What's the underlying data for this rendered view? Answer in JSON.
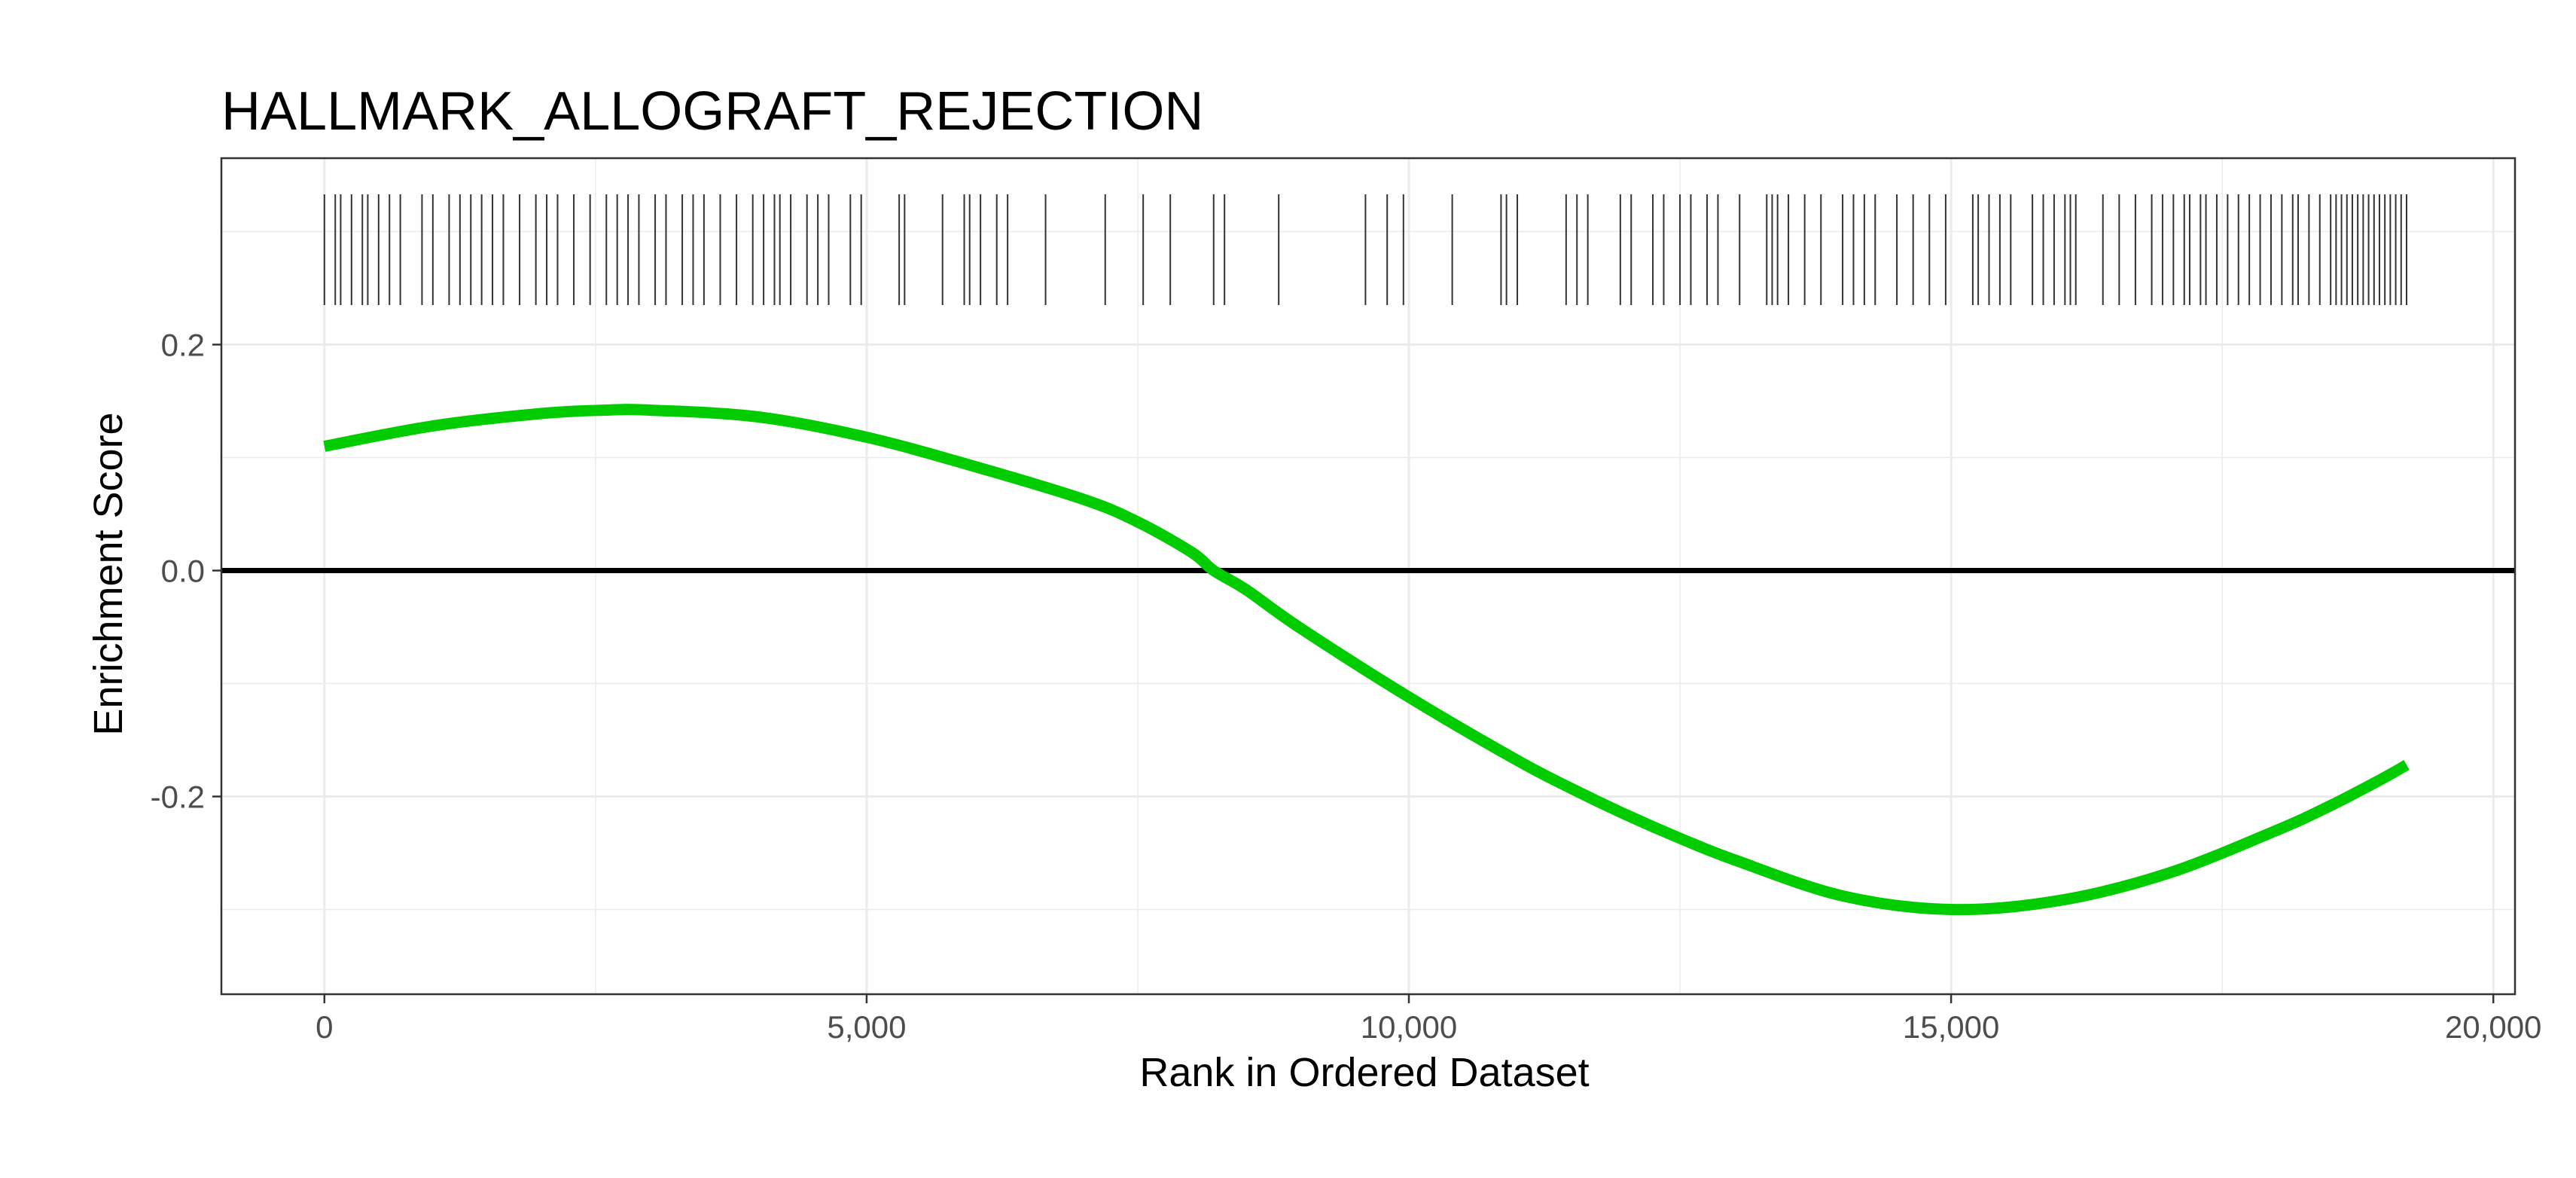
{
  "colors": {
    "curve": "#00cc00",
    "zero_line": "#000000",
    "gene_ticks": "#333333",
    "grid": "#ebebeb",
    "panel_border": "#333333",
    "background": "#ffffff"
  },
  "chart_data": {
    "type": "line",
    "title": "HALLMARK_ALLOGRAFT_REJECTION",
    "xlabel": "Rank in Ordered Dataset",
    "ylabel": "Enrichment Score",
    "xlim": [
      -950,
      20200
    ],
    "ylim": [
      -0.375,
      0.365
    ],
    "x_ticks": [
      0,
      5000,
      10000,
      15000,
      20000
    ],
    "x_tick_labels": [
      "0",
      "5,000",
      "10,000",
      "15,000",
      "20,000"
    ],
    "y_ticks": [
      -0.2,
      0.0,
      0.2
    ],
    "y_tick_labels": [
      "-0.2",
      "0.0",
      "0.2"
    ],
    "grid": true,
    "reference_line": 0.0,
    "series": [
      {
        "x": [
          0,
          1000,
          2000,
          2600,
          3000,
          4000,
          5000,
          6000,
          7000,
          7500,
          8000,
          8200,
          8500,
          9000,
          10000,
          11000,
          11500,
          12000,
          12500,
          13000,
          14000,
          15000,
          16000,
          17000,
          18000,
          18500,
          19000,
          19200
        ],
        "y": [
          0.11,
          0.128,
          0.139,
          0.142,
          0.142,
          0.136,
          0.118,
          0.092,
          0.063,
          0.043,
          0.016,
          0.0,
          -0.017,
          -0.051,
          -0.112,
          -0.168,
          -0.193,
          -0.216,
          -0.237,
          -0.256,
          -0.288,
          -0.3,
          -0.292,
          -0.268,
          -0.23,
          -0.208,
          -0.183,
          -0.172
        ]
      }
    ],
    "gene_hits": {
      "y_range": [
        0.235,
        0.333
      ],
      "positions": [
        0,
        100,
        150,
        250,
        350,
        400,
        500,
        600,
        700,
        900,
        1000,
        1150,
        1250,
        1350,
        1450,
        1550,
        1650,
        1800,
        1950,
        2050,
        2150,
        2300,
        2450,
        2600,
        2700,
        2800,
        2900,
        3050,
        3150,
        3300,
        3400,
        3500,
        3650,
        3800,
        3950,
        4050,
        4150,
        4200,
        4300,
        4450,
        4550,
        4650,
        4850,
        4950,
        5300,
        5350,
        5700,
        5900,
        5950,
        6050,
        6200,
        6300,
        6650,
        7200,
        7550,
        7800,
        8200,
        8300,
        8800,
        9600,
        9800,
        9950,
        10400,
        10850,
        10900,
        11000,
        11450,
        11550,
        11650,
        11950,
        12050,
        12250,
        12350,
        12500,
        12600,
        12750,
        12850,
        13050,
        13300,
        13350,
        13400,
        13500,
        13650,
        13800,
        14000,
        14100,
        14200,
        14300,
        14500,
        14650,
        14800,
        14950,
        15200,
        15250,
        15350,
        15450,
        15550,
        15750,
        15850,
        15950,
        16050,
        16100,
        16150,
        16400,
        16550,
        16700,
        16850,
        16950,
        17050,
        17150,
        17200,
        17300,
        17350,
        17450,
        17550,
        17650,
        17750,
        17850,
        17950,
        18050,
        18150,
        18200,
        18300,
        18400,
        18500,
        18550,
        18600,
        18650,
        18700,
        18750,
        18800,
        18850,
        18900,
        18950,
        19000,
        19050,
        19100,
        19150,
        19200
      ]
    }
  }
}
